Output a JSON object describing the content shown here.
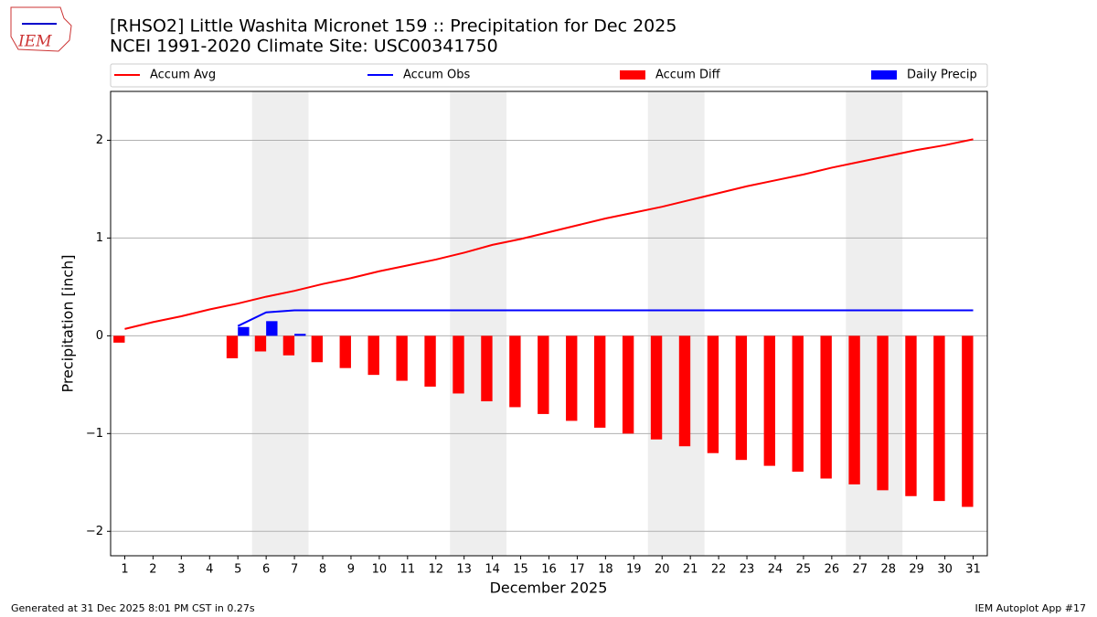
{
  "chart_data": {
    "type": "combo",
    "title": "[RHSO2] Little Washita Micronet 159 :: Precipitation for Dec 2025",
    "subtitle": "NCEI 1991-2020 Climate Site: USC00341750",
    "logo_text": "IEM",
    "x_label": "December 2025",
    "y_label": "Precipitation [inch]",
    "x": [
      1,
      2,
      3,
      4,
      5,
      6,
      7,
      8,
      9,
      10,
      11,
      12,
      13,
      14,
      15,
      16,
      17,
      18,
      19,
      20,
      21,
      22,
      23,
      24,
      25,
      26,
      27,
      28,
      29,
      30,
      31
    ],
    "xlim": [
      0.5,
      31.5
    ],
    "xticks": [
      1,
      2,
      3,
      4,
      5,
      6,
      7,
      8,
      9,
      10,
      11,
      12,
      13,
      14,
      15,
      16,
      17,
      18,
      19,
      20,
      21,
      22,
      23,
      24,
      25,
      26,
      27,
      28,
      29,
      30,
      31
    ],
    "ylim": [
      -2.25,
      2.5
    ],
    "yticks": [
      {
        "value": -2,
        "label": "−2"
      },
      {
        "value": -1,
        "label": "−1"
      },
      0,
      1,
      2
    ],
    "grid": true,
    "legend": "top",
    "shaded_spans": [
      [
        5.5,
        7.5
      ],
      [
        12.5,
        14.5
      ],
      [
        19.5,
        21.5
      ],
      [
        26.5,
        28.5
      ]
    ],
    "series": [
      {
        "name": "Accum Avg",
        "color": "#ff0000",
        "kind": "line",
        "values": [
          0.07,
          0.14,
          0.2,
          0.27,
          0.33,
          0.4,
          0.46,
          0.53,
          0.59,
          0.66,
          0.72,
          0.78,
          0.85,
          0.93,
          0.99,
          1.06,
          1.13,
          1.2,
          1.26,
          1.32,
          1.39,
          1.46,
          1.53,
          1.59,
          1.65,
          1.72,
          1.78,
          1.84,
          1.9,
          1.95,
          2.01
        ]
      },
      {
        "name": "Accum Obs",
        "color": "#0000ff",
        "kind": "line",
        "values": [
          null,
          null,
          null,
          null,
          0.1,
          0.24,
          0.26,
          0.26,
          0.26,
          0.26,
          0.26,
          0.26,
          0.26,
          0.26,
          0.26,
          0.26,
          0.26,
          0.26,
          0.26,
          0.26,
          0.26,
          0.26,
          0.26,
          0.26,
          0.26,
          0.26,
          0.26,
          0.26,
          0.26,
          0.26,
          0.26
        ]
      },
      {
        "name": "Accum Diff",
        "color": "#ff0000",
        "kind": "bar_left",
        "values": [
          -0.07,
          null,
          null,
          null,
          -0.23,
          -0.16,
          -0.2,
          -0.27,
          -0.33,
          -0.4,
          -0.46,
          -0.52,
          -0.59,
          -0.67,
          -0.73,
          -0.8,
          -0.87,
          -0.94,
          -1.0,
          -1.06,
          -1.13,
          -1.2,
          -1.27,
          -1.33,
          -1.39,
          -1.46,
          -1.52,
          -1.58,
          -1.64,
          -1.69,
          -1.75
        ]
      },
      {
        "name": "Daily Precip",
        "color": "#0000ff",
        "kind": "bar_right",
        "values": [
          null,
          null,
          null,
          null,
          0.09,
          0.15,
          0.02,
          0,
          0,
          0,
          0,
          0,
          0,
          0,
          0,
          0,
          0,
          0,
          0,
          0,
          0,
          0,
          0,
          0,
          0,
          0,
          0,
          0,
          0,
          0,
          0
        ]
      }
    ]
  },
  "footer": {
    "left": "Generated at 31 Dec 2025 8:01 PM CST in 0.27s",
    "right": "IEM Autoplot App #17"
  }
}
